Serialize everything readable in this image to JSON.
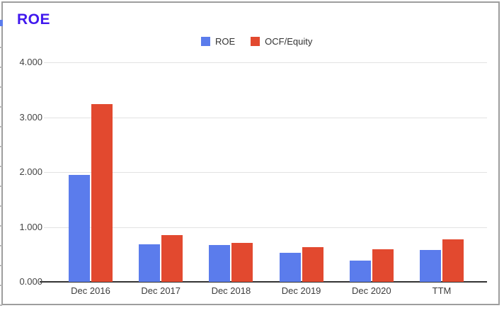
{
  "chart": {
    "title": "ROE",
    "legend": [
      {
        "label": "ROE",
        "color": "#5b7cec"
      },
      {
        "label": "OCF/Equity",
        "color": "#e2492f"
      }
    ]
  },
  "chart_data": {
    "type": "bar",
    "title": "ROE",
    "categories": [
      "Dec 2016",
      "Dec 2017",
      "Dec 2018",
      "Dec 2019",
      "Dec 2020",
      "TTM"
    ],
    "series": [
      {
        "name": "ROE",
        "color": "#5b7cec",
        "values": [
          1.95,
          0.68,
          0.67,
          0.53,
          0.39,
          0.58
        ]
      },
      {
        "name": "OCF/Equity",
        "color": "#e2492f",
        "values": [
          3.24,
          0.85,
          0.71,
          0.63,
          0.59,
          0.78
        ]
      }
    ],
    "xlabel": "",
    "ylabel": "",
    "ylim": [
      0,
      4
    ],
    "yticks": [
      "0.000",
      "1.000",
      "2.000",
      "3.000",
      "4.000"
    ],
    "grid": true,
    "legend_position": "top"
  },
  "colors": {
    "title_text": "#4119ee",
    "axis_text": "#3c3c3c",
    "gridline": "#e3e3e3",
    "baseline": "#333333",
    "frame_border": "#9e9e9e",
    "series_blue": "#5b7cec",
    "series_red": "#e2492f"
  }
}
